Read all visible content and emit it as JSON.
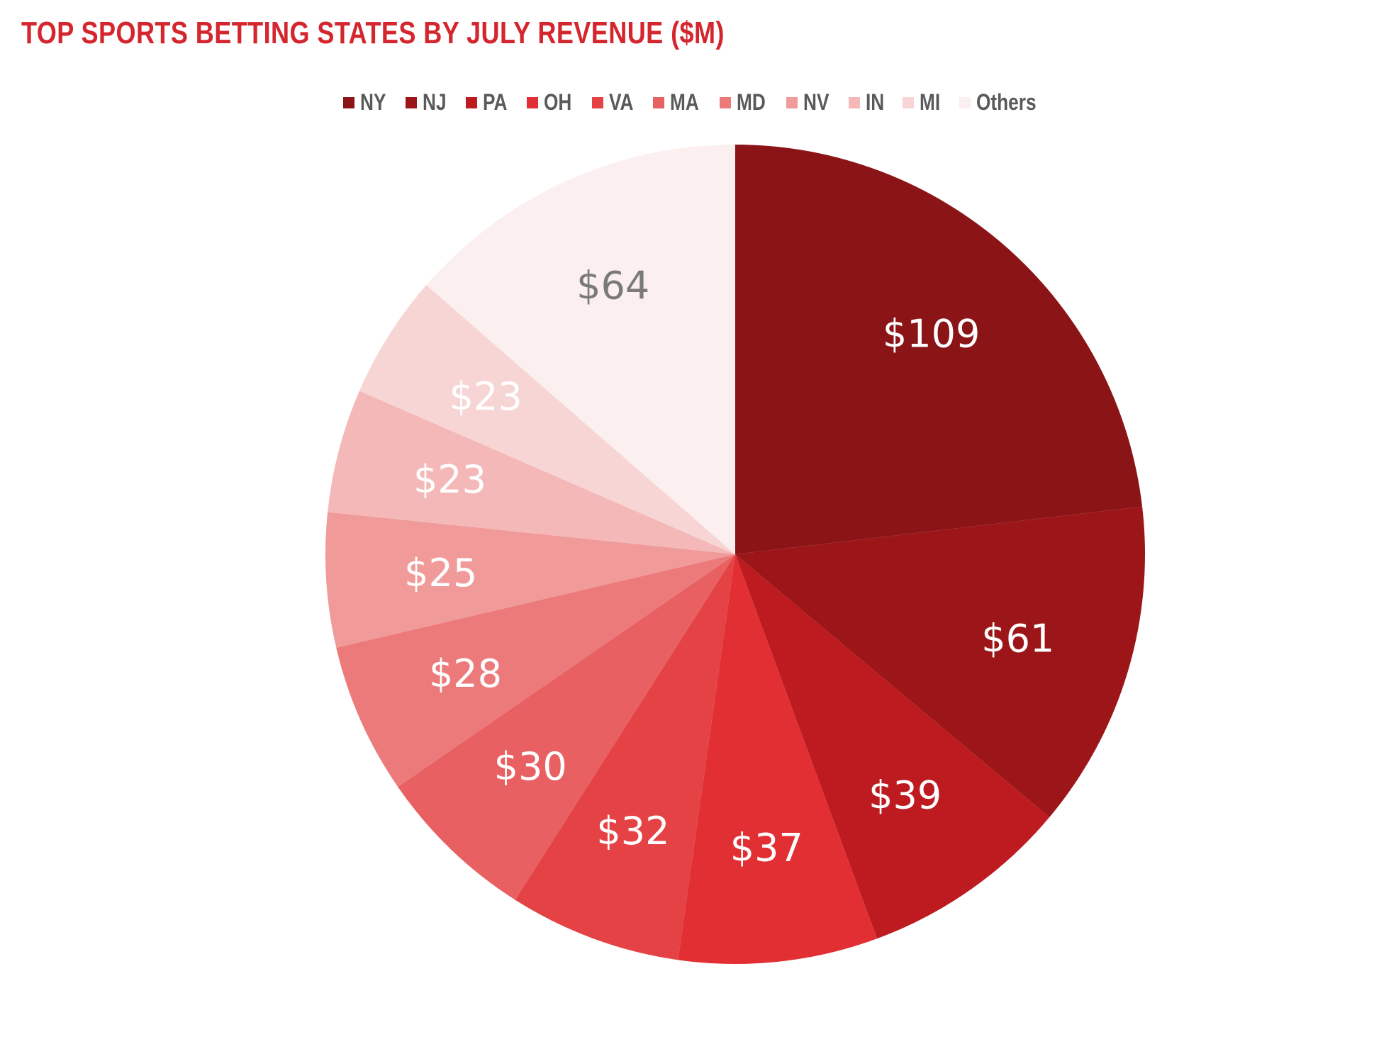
{
  "chart_data": {
    "type": "pie",
    "title": "TOP SPORTS BETTING STATES BY JULY REVENUE ($M)",
    "categories": [
      "NY",
      "NJ",
      "PA",
      "OH",
      "VA",
      "MA",
      "MD",
      "NV",
      "IN",
      "MI",
      "Others"
    ],
    "values": [
      109,
      61,
      39,
      37,
      32,
      30,
      28,
      25,
      23,
      23,
      64
    ],
    "data_labels": [
      "$109",
      "$61",
      "$39",
      "$37",
      "$32",
      "$30",
      "$28",
      "$25",
      "$23",
      "$23",
      "$64"
    ],
    "colors": [
      "#8b1417",
      "#9c1619",
      "#bd1b20",
      "#e12f33",
      "#e54245",
      "#e86062",
      "#ec7a7b",
      "#f09b9a",
      "#f4b8b8",
      "#f8d5d5",
      "#fcefef"
    ],
    "label_colors": [
      "#ffffff",
      "#ffffff",
      "#ffffff",
      "#ffffff",
      "#ffffff",
      "#ffffff",
      "#ffffff",
      "#ffffff",
      "#ffffff",
      "#ffffff",
      "#7a7a7a"
    ],
    "start_angle_deg": 0,
    "direction": "clockwise",
    "legend_position": "top"
  }
}
